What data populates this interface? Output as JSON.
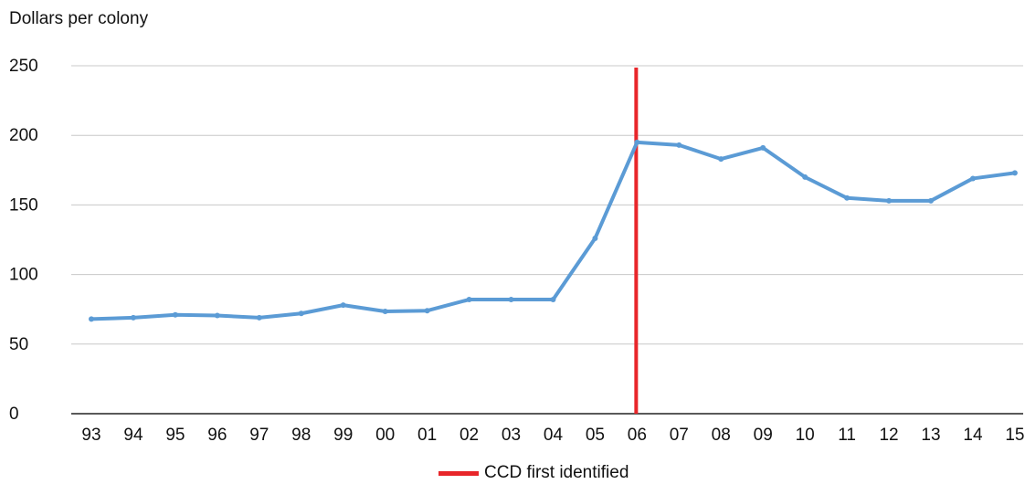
{
  "chart_data": {
    "type": "line",
    "ylabel": "Dollars per colony",
    "xlabel": "",
    "categories": [
      "93",
      "94",
      "95",
      "96",
      "97",
      "98",
      "99",
      "00",
      "01",
      "02",
      "03",
      "04",
      "05",
      "06",
      "07",
      "08",
      "09",
      "10",
      "11",
      "12",
      "13",
      "14",
      "15"
    ],
    "series": [
      {
        "values": [
          68,
          69,
          71,
          70.5,
          69,
          72,
          78,
          73.5,
          74,
          82,
          82,
          82,
          126,
          195,
          193,
          183,
          191,
          170,
          155,
          153,
          153,
          169,
          173
        ],
        "color": "#5b9bd5"
      }
    ],
    "ylim": [
      0,
      250
    ],
    "yticks": [
      0,
      50,
      100,
      150,
      200,
      250
    ],
    "grid": true,
    "marker": {
      "category": "06",
      "label": "CCD first identified",
      "color": "#e8262a"
    },
    "legend_position": "bottom-center"
  }
}
